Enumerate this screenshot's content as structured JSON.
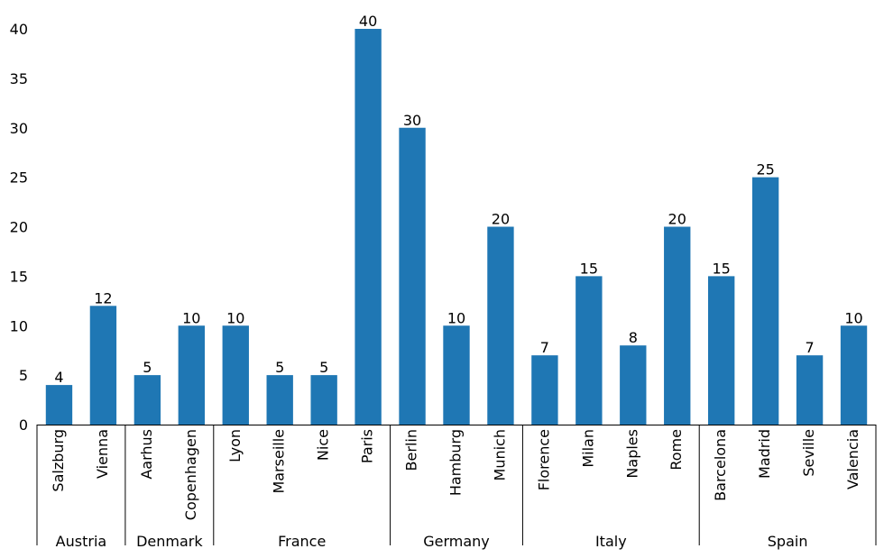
{
  "chart_data": {
    "type": "bar",
    "title": "",
    "xlabel": "",
    "ylabel": "",
    "ylim": [
      0,
      40
    ],
    "yticks": [
      0,
      5,
      10,
      15,
      20,
      25,
      30,
      35,
      40
    ],
    "categories": [
      "Salzburg",
      "Vienna",
      "Aarhus",
      "Copenhagen",
      "Lyon",
      "Marseille",
      "Nice",
      "Paris",
      "Berlin",
      "Hamburg",
      "Munich",
      "Florence",
      "Milan",
      "Naples",
      "Rome",
      "Barcelona",
      "Madrid",
      "Seville",
      "Valencia"
    ],
    "values": [
      4,
      12,
      5,
      10,
      10,
      5,
      5,
      40,
      30,
      10,
      20,
      7,
      15,
      8,
      20,
      15,
      25,
      7,
      10
    ],
    "groups": [
      {
        "name": "Austria",
        "count": 2
      },
      {
        "name": "Denmark",
        "count": 2
      },
      {
        "name": "France",
        "count": 4
      },
      {
        "name": "Germany",
        "count": 3
      },
      {
        "name": "Italy",
        "count": 4
      },
      {
        "name": "Spain",
        "count": 4
      }
    ],
    "bar_color": "#1f77b4"
  }
}
